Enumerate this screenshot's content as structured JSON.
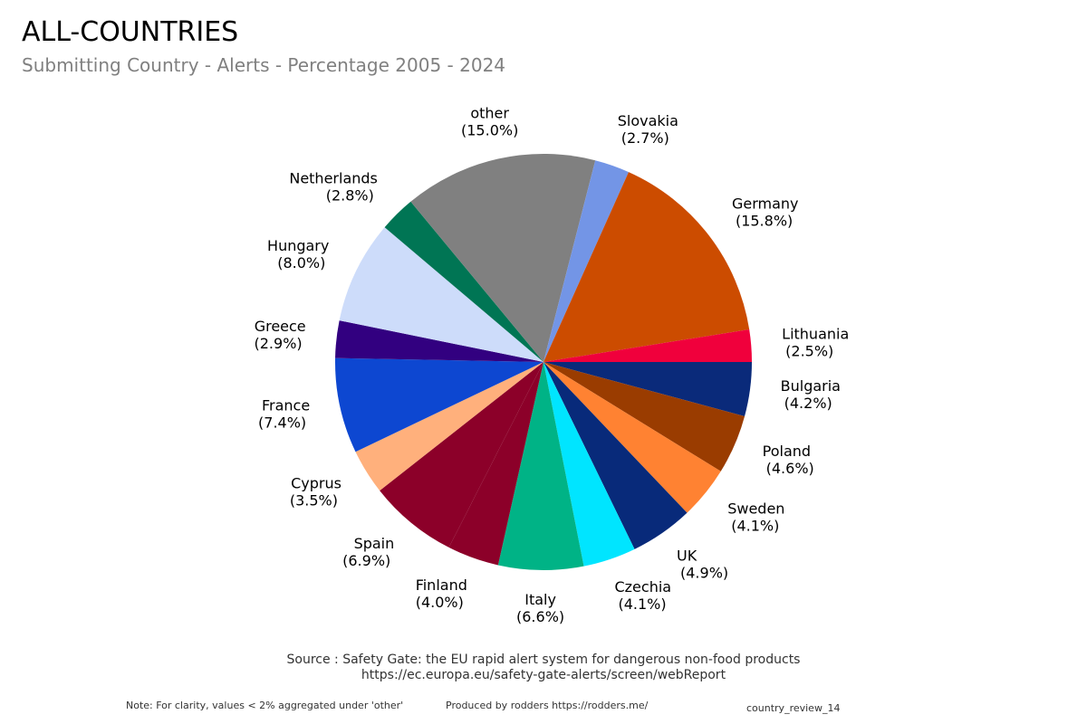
{
  "header": {
    "title": "ALL-COUNTRIES",
    "subtitle": "Submitting Country - Alerts - Percentage 2005 - 2024"
  },
  "footer": {
    "source_line1": "Source : Safety Gate: the EU rapid alert system for dangerous non-food products",
    "source_line2": "https://ec.europa.eu/safety-gate-alerts/screen/webReport",
    "note": "Note: For clarity, values < 2% aggregated under 'other'",
    "produced_by": "Produced by rodders https://rodders.me/",
    "review_id": "country_review_14"
  },
  "chart_data": {
    "type": "pie",
    "title": "ALL-COUNTRIES",
    "subtitle": "Submitting Country - Alerts - Percentage 2005 - 2024",
    "start": "3 o'clock",
    "direction": "clockwise",
    "slices": [
      {
        "label": "Bulgaria",
        "value": 4.2,
        "pct": "(4.2%)",
        "color": "#0a2a7a"
      },
      {
        "label": "Poland",
        "value": 4.6,
        "pct": "(4.6%)",
        "color": "#9a3c00"
      },
      {
        "label": "Sweden",
        "value": 4.1,
        "pct": "(4.1%)",
        "color": "#ff8232"
      },
      {
        "label": "UK",
        "value": 4.9,
        "pct": "(4.9%)",
        "color": "#082a7a"
      },
      {
        "label": "Czechia",
        "value": 4.1,
        "pct": "(4.1%)",
        "color": "#00e5ff"
      },
      {
        "label": "Italy",
        "value": 6.6,
        "pct": "(6.6%)",
        "color": "#00b386"
      },
      {
        "label": "Finland",
        "value": 4.0,
        "pct": "(4.0%)",
        "color": "#8c0029"
      },
      {
        "label": "Spain",
        "value": 6.9,
        "pct": "(6.9%)",
        "color": "#8c0029"
      },
      {
        "label": "Cyprus",
        "value": 3.5,
        "pct": "(3.5%)",
        "color": "#ffb07c"
      },
      {
        "label": "France",
        "value": 7.4,
        "pct": "(7.4%)",
        "color": "#0d47d1"
      },
      {
        "label": "Greece",
        "value": 2.9,
        "pct": "(2.9%)",
        "color": "#320080"
      },
      {
        "label": "Hungary",
        "value": 8.0,
        "pct": "(8.0%)",
        "color": "#cddcfa"
      },
      {
        "label": "Netherlands",
        "value": 2.8,
        "pct": "(2.8%)",
        "color": "#007554"
      },
      {
        "label": "other",
        "value": 15.0,
        "pct": "(15.0%)",
        "color": "#808080"
      },
      {
        "label": "Slovakia",
        "value": 2.7,
        "pct": "(2.7%)",
        "color": "#7395e6"
      },
      {
        "label": "Germany",
        "value": 15.8,
        "pct": "(15.8%)",
        "color": "#cc4c00"
      },
      {
        "label": "Lithuania",
        "value": 2.5,
        "pct": "(2.5%)",
        "color": "#f0003c"
      }
    ]
  }
}
